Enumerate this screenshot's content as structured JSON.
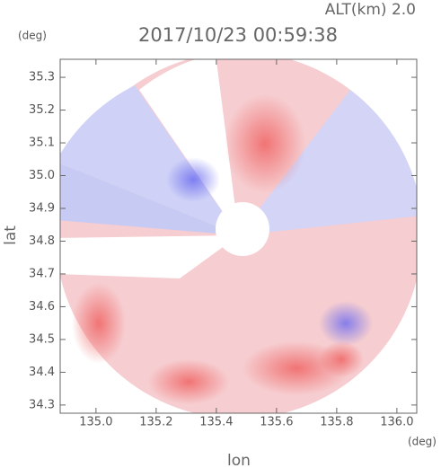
{
  "chart_data": {
    "type": "radar-map",
    "title": "2017/10/23 00:59:38",
    "subtitle": "ALT(km) 2.0",
    "x_label": "lon",
    "y_label": "lat",
    "x_unit": "(deg)",
    "y_unit": "(deg)",
    "xlim": [
      134.881,
      136.066
    ],
    "ylim": [
      34.275,
      35.355
    ],
    "xticks": [
      {
        "value": 135.0,
        "label": "135.0"
      },
      135.2,
      135.4,
      135.6,
      135.8,
      {
        "value": 136.0,
        "label": "136.0"
      }
    ],
    "yticks": [
      34.3,
      34.4,
      34.5,
      34.6,
      34.7,
      34.8,
      34.9,
      {
        "value": 35.0,
        "label": "35.0"
      },
      35.1,
      35.2,
      35.3
    ]
  }
}
